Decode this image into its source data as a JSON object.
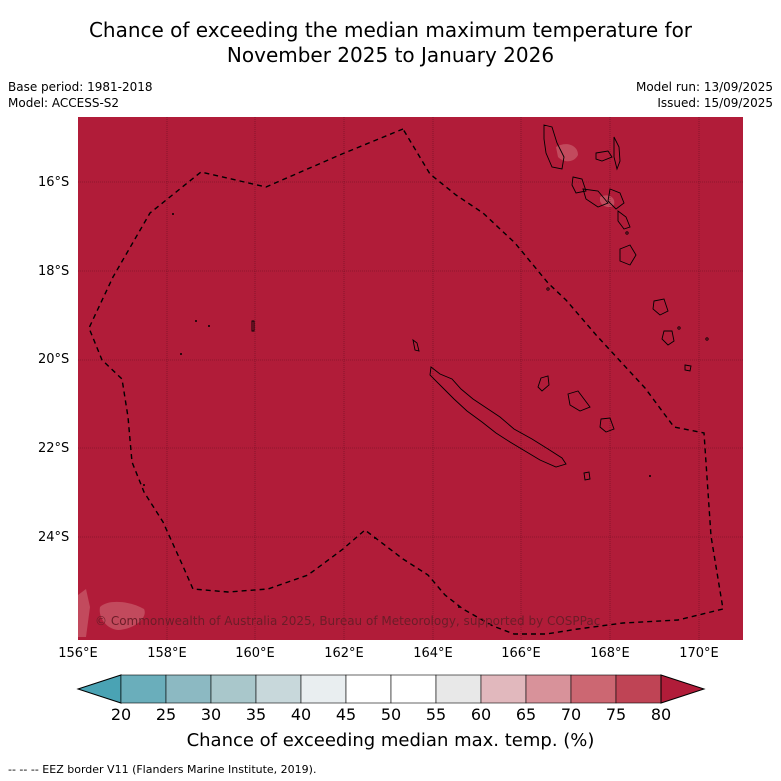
{
  "title_line1": "Chance of exceeding the median maximum temperature for",
  "title_line2": "November 2025 to January 2026",
  "meta": {
    "base_period": "Base period: 1981-2018",
    "model": "Model: ACCESS-S2",
    "model_run": "Model run: 13/09/2025",
    "issued": "Issued: 15/09/2025"
  },
  "map": {
    "fill_color": "#b11c39",
    "lat_labels": [
      "16°S",
      "18°S",
      "20°S",
      "22°S",
      "24°S"
    ],
    "lon_labels": [
      "156°E",
      "158°E",
      "160°E",
      "162°E",
      "164°E",
      "166°E",
      "168°E",
      "170°E"
    ],
    "copyright": "© Commonwealth of Australia 2025, Bureau of Meteorology, supported by COSPPac"
  },
  "colorbar": {
    "title": "Chance of exceeding median max. temp. (%)",
    "ticks": [
      "20",
      "25",
      "30",
      "35",
      "40",
      "45",
      "50",
      "55",
      "60",
      "65",
      "70",
      "75",
      "80"
    ],
    "colors": [
      "#4aa3b4",
      "#6aaebb",
      "#8cb9c2",
      "#a9c7cb",
      "#c8d8db",
      "#e9eef0",
      "#ffffff",
      "#ffffff",
      "#e8e8e8",
      "#e1b8bd",
      "#d8929a",
      "#cc6772",
      "#bf4455",
      "#b11c39"
    ]
  },
  "footnote": "--  --  -- EEZ border V11 (Flanders Marine Institute, 2019)."
}
